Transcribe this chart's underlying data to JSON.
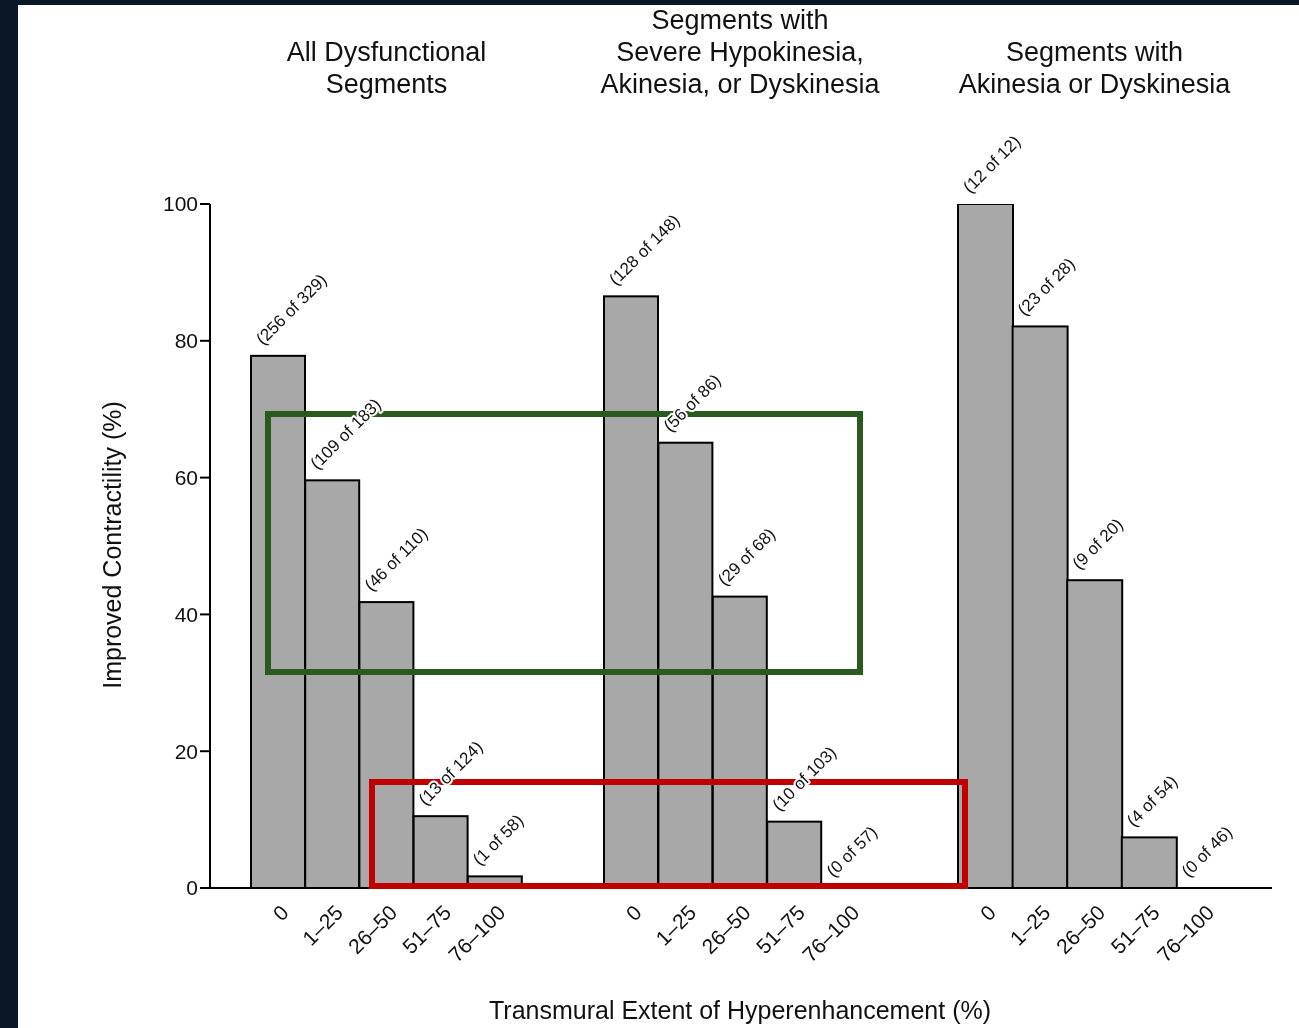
{
  "chart_data": [
    {
      "type": "bar",
      "title": "All Dysfunctional\nSegments",
      "ylabel": "Improved Contractility (%)",
      "categories": [
        "0",
        "1–25",
        "26–50",
        "51–75",
        "76–100"
      ],
      "values": [
        77.8,
        59.6,
        41.8,
        10.5,
        1.7
      ],
      "value_labels": [
        "(256 of 329)",
        "(109 of 183)",
        "(46 of 110)",
        "(13 of 124)",
        "(1 of 58)"
      ],
      "color": "#a8a8a8",
      "ylim": [
        0,
        100
      ],
      "yticks": [
        0,
        20,
        40,
        60,
        80,
        100
      ]
    },
    {
      "type": "bar",
      "title": "Segments with\nSevere Hypokinesia,\nAkinesia, or Dyskinesia",
      "xlabel": "Transmural Extent of Hyperenhancement (%)",
      "categories": [
        "0",
        "1–25",
        "26–50",
        "51–75",
        "76–100"
      ],
      "values": [
        86.5,
        65.1,
        42.6,
        9.7,
        0
      ],
      "value_labels": [
        "(128 of 148)",
        "(56 of 86)",
        "(29 of 68)",
        "(10 of 103)",
        "(0 of 57)"
      ],
      "color": "#a8a8a8",
      "ylim": [
        0,
        100
      ],
      "yticks": [
        0,
        20,
        40,
        60,
        80,
        100
      ],
      "tick_labels": "x"
    },
    {
      "type": "bar",
      "title": "Segments with\nAkinesia or Dyskinesia",
      "categories": [
        "0",
        "1–25",
        "26–50",
        "51–75",
        "76–100"
      ],
      "values": [
        100,
        82.1,
        45,
        7.4,
        0
      ],
      "value_labels": [
        "(12 of 12)",
        "(23 of 28)",
        "(9 of 20)",
        "(4 of 54)",
        "(0 of 46)"
      ],
      "color": "#a8a8a8",
      "ylim": [
        0,
        100
      ],
      "yticks": [
        0,
        20,
        40,
        60,
        80,
        100
      ],
      "tick_labels": "x"
    }
  ]
}
